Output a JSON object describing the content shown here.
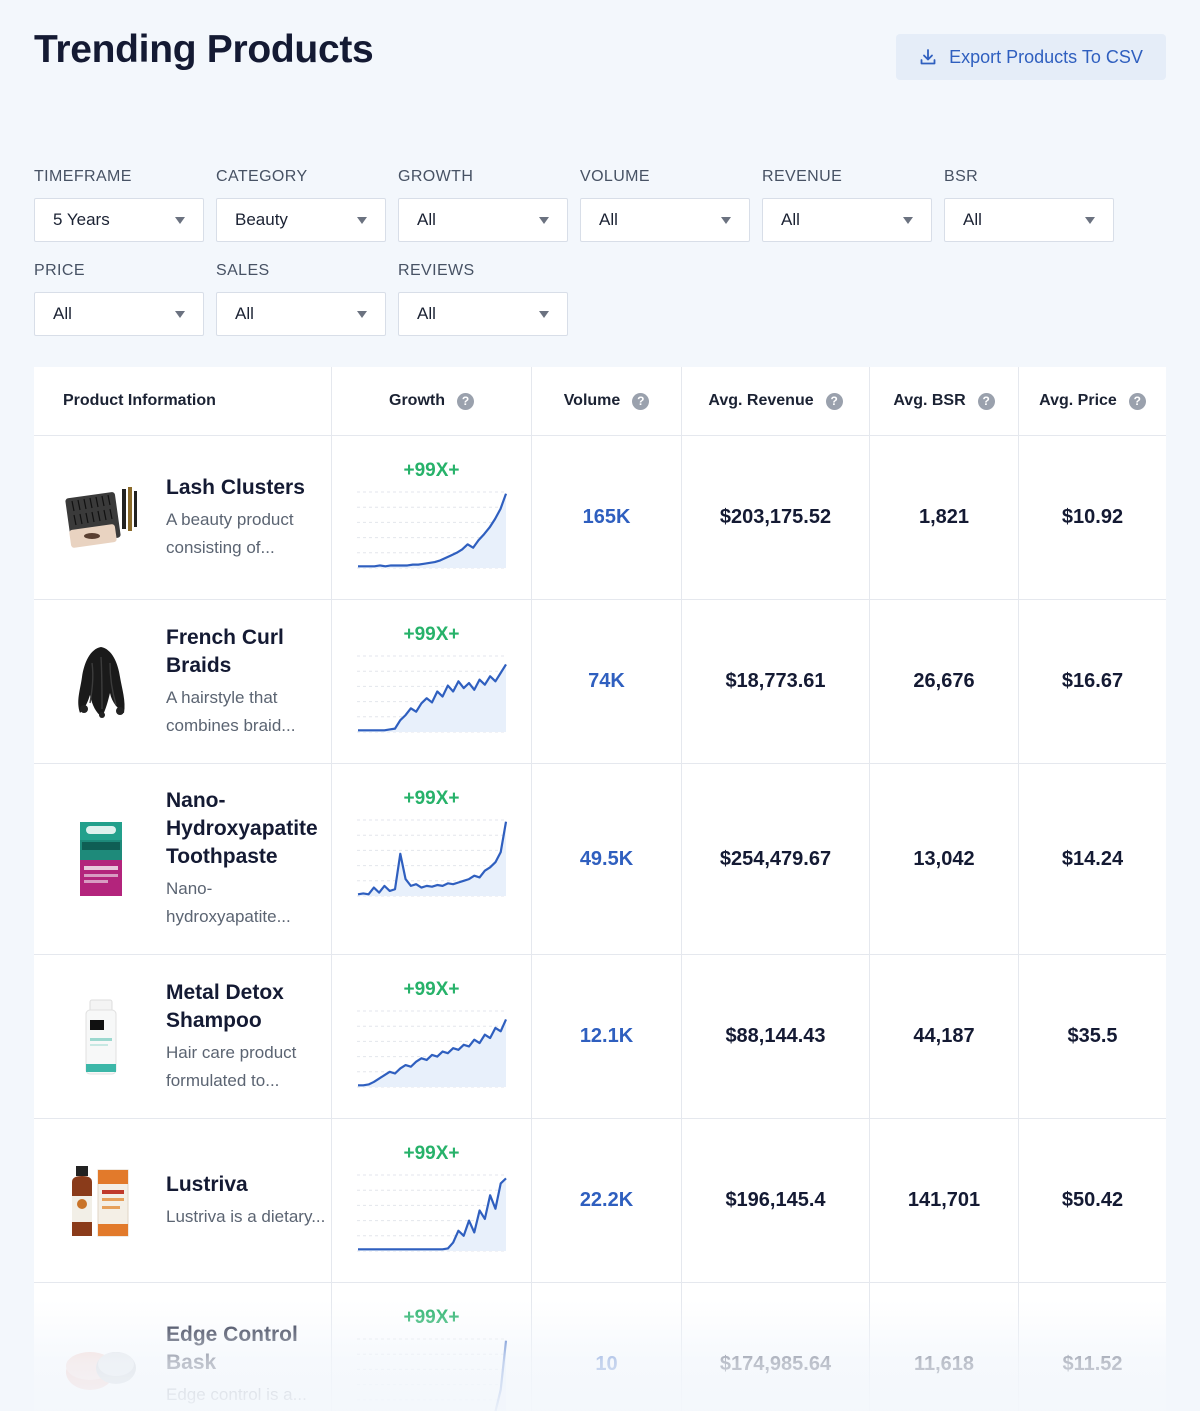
{
  "header": {
    "title": "Trending Products",
    "export_label": "Export Products To CSV"
  },
  "filters": [
    {
      "label": "TIMEFRAME",
      "value": "5 Years"
    },
    {
      "label": "CATEGORY",
      "value": "Beauty"
    },
    {
      "label": "GROWTH",
      "value": "All"
    },
    {
      "label": "VOLUME",
      "value": "All"
    },
    {
      "label": "REVENUE",
      "value": "All"
    },
    {
      "label": "BSR",
      "value": "All"
    },
    {
      "label": "PRICE",
      "value": "All"
    },
    {
      "label": "SALES",
      "value": "All"
    },
    {
      "label": "REVIEWS",
      "value": "All"
    }
  ],
  "table": {
    "columns": [
      "Product Information",
      "Growth",
      "Volume",
      "Avg. Revenue",
      "Avg. BSR",
      "Avg. Price"
    ],
    "rows": [
      {
        "name": "Lash Clusters",
        "desc": "A beauty product consisting of...",
        "growth": "+99X+",
        "volume": "165K",
        "revenue": "$203,175.52",
        "bsr": "1,821",
        "price": "$10.92",
        "image": "lash-clusters-product-image",
        "trend": [
          2,
          2,
          2,
          2,
          3,
          2,
          3,
          3,
          3,
          3,
          4,
          4,
          5,
          6,
          7,
          9,
          12,
          15,
          18,
          22,
          28,
          24,
          33,
          40,
          48,
          58,
          70,
          88
        ]
      },
      {
        "name": "French Curl Braids",
        "desc": "A hairstyle that combines braid...",
        "growth": "+99X+",
        "volume": "74K",
        "revenue": "$18,773.61",
        "bsr": "26,676",
        "price": "$16.67",
        "image": "french-curl-braids-product-image",
        "trend": [
          2,
          2,
          2,
          2,
          2,
          2,
          3,
          4,
          14,
          20,
          28,
          24,
          34,
          40,
          35,
          48,
          42,
          55,
          48,
          60,
          52,
          58,
          50,
          62,
          56,
          66,
          60,
          70,
          80
        ]
      },
      {
        "name": "Nano-Hydroxyapatite Toothpaste",
        "desc": "Nano-hydroxyapatite...",
        "growth": "+99X+",
        "volume": "49.5K",
        "revenue": "$254,479.67",
        "bsr": "13,042",
        "price": "$14.24",
        "image": "nano-hydroxyapatite-toothpaste-product-image",
        "trend": [
          2,
          3,
          2,
          10,
          4,
          12,
          6,
          8,
          50,
          20,
          12,
          14,
          10,
          12,
          11,
          13,
          12,
          15,
          14,
          16,
          18,
          20,
          24,
          22,
          30,
          34,
          40,
          52,
          88
        ]
      },
      {
        "name": "Metal Detox Shampoo",
        "desc": "Hair care product formulated to...",
        "growth": "+99X+",
        "volume": "12.1K",
        "revenue": "$88,144.43",
        "bsr": "44,187",
        "price": "$35.5",
        "image": "metal-detox-shampoo-product-image",
        "trend": [
          2,
          2,
          3,
          6,
          10,
          14,
          18,
          16,
          22,
          26,
          24,
          30,
          34,
          32,
          38,
          36,
          42,
          40,
          46,
          44,
          50,
          48,
          56,
          52,
          62,
          58,
          70,
          66,
          80
        ]
      },
      {
        "name": "Lustriva",
        "desc": "Lustriva is a dietary...",
        "growth": "+99X+",
        "volume": "22.2K",
        "revenue": "$196,145.4",
        "bsr": "141,701",
        "price": "$50.42",
        "image": "lustriva-product-image",
        "trend": [
          2,
          2,
          2,
          2,
          2,
          2,
          2,
          2,
          2,
          2,
          2,
          2,
          2,
          2,
          2,
          2,
          2,
          3,
          10,
          24,
          18,
          36,
          22,
          48,
          38,
          66,
          50,
          80,
          86
        ]
      },
      {
        "name": "Edge Control Bask",
        "desc": "Edge control is a...",
        "growth": "+99X+",
        "volume": "10",
        "revenue": "$174,985.64",
        "bsr": "11,618",
        "price": "$11.52",
        "image": "edge-control-product-image",
        "trend": [
          2,
          2,
          2,
          2,
          2,
          2,
          2,
          2,
          2,
          2,
          2,
          2,
          2,
          2,
          2,
          2,
          2,
          2,
          2,
          2,
          2,
          2,
          2,
          2,
          2,
          2,
          4,
          30,
          88
        ]
      }
    ]
  }
}
